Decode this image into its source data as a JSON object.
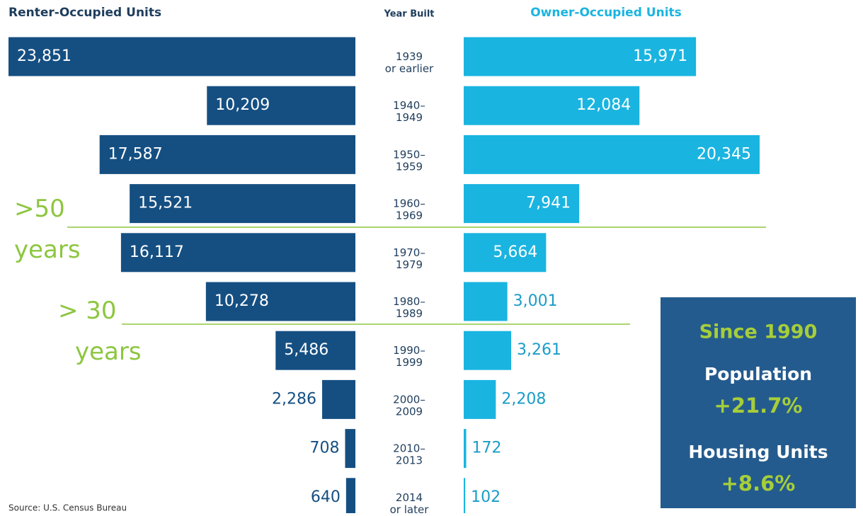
{
  "chart_data": {
    "type": "bar",
    "orientation": "horizontal-butterfly",
    "category_label": "Year Built",
    "categories": [
      "1939\nor earlier",
      "1940–\n1949",
      "1950–\n1959",
      "1960–\n1969",
      "1970–\n1979",
      "1980–\n1989",
      "1990–\n1999",
      "2000–\n2009",
      "2010–\n2013",
      "2014\nor later"
    ],
    "series": [
      {
        "name": "Renter-Occupied Units",
        "color": "#154f82",
        "values": [
          23851,
          10209,
          17587,
          15521,
          16117,
          10278,
          5486,
          2286,
          708,
          640
        ],
        "value_labels": [
          "23,851",
          "10,209",
          "17,587",
          "15,521",
          "16,117",
          "10,278",
          "5,486",
          "2,286",
          "708",
          "640"
        ]
      },
      {
        "name": "Owner-Occupied Units",
        "color": "#1ab4e0",
        "values": [
          15971,
          12084,
          20345,
          7941,
          5664,
          3001,
          3261,
          2208,
          172,
          102
        ],
        "value_labels": [
          "15,971",
          "12,084",
          "20,345",
          "7,941",
          "5,664",
          "3,001",
          "3,261",
          "2,208",
          "172",
          "102"
        ]
      }
    ],
    "annotations": [
      ">50\nyears",
      "> 30\nyears"
    ],
    "callout": {
      "title": "Since 1990",
      "items": [
        {
          "label": "Population",
          "value": "+21.7%"
        },
        {
          "label": "Housing Units",
          "value": "+8.6%"
        }
      ]
    },
    "source": "Source: U.S. Census Bureau"
  }
}
